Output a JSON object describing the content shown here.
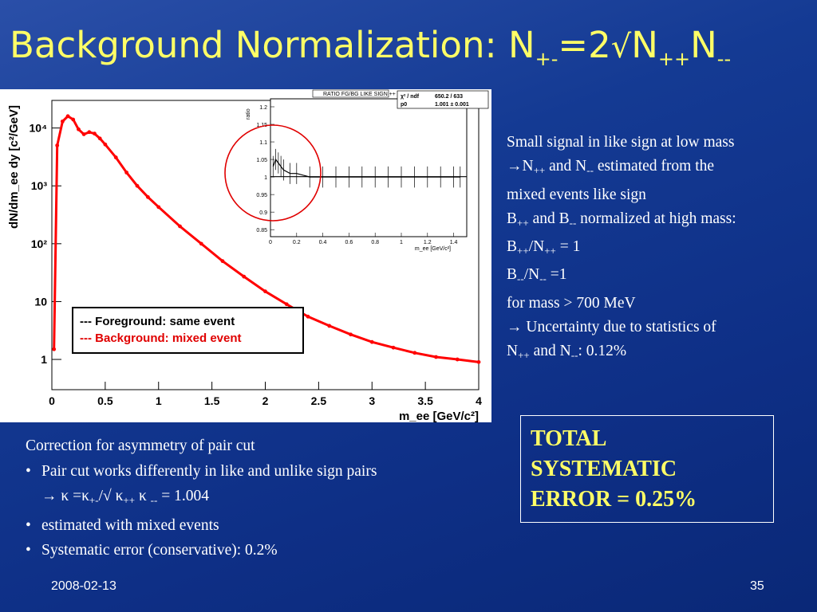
{
  "title": {
    "main": "Background Normalization: N",
    "sub1": "+-",
    "eq": "=2",
    "sqrt": "√",
    "n1": "N",
    "sub2": "++",
    "n2": "N",
    "sub3": "--"
  },
  "legend": {
    "fg": "--- Foreground: same event",
    "bg": "--- Background: mixed event"
  },
  "right_text": {
    "l1": "Small signal in like sign at low mass",
    "l2a": "N",
    "l2s1": "++",
    "l2b": " and N",
    "l2s2": "--",
    "l2c": " estimated from the",
    "l3": "mixed events like sign",
    "l4a": "B",
    "l4s1": "++",
    "l4b": " and B",
    "l4s2": "--",
    "l4c": " normalized at high mass:",
    "l5a": "B",
    "l5s1": "++",
    "l5b": "/N",
    "l5s2": "++",
    "l5c": " = 1",
    "l6a": "B",
    "l6s1": "--",
    "l6b": "/N",
    "l6s2": "--",
    "l6c": " =1",
    "l7": "for mass > 700 MeV",
    "l8": " Uncertainty due to statistics of",
    "l9a": "N",
    "l9s1": "++",
    "l9b": " and N",
    "l9s2": "--",
    "l9c": ": 0.12%"
  },
  "bottom_text": {
    "heading": "Correction for asymmetry of pair cut",
    "b1": "Pair cut works differently in like and unlike sign pairs",
    "k1": " κ =κ",
    "ks1": "+-",
    "k2": "/√ κ",
    "ks2": "++",
    "k3": " κ ",
    "ks3": "--",
    "k4": " = 1.004",
    "b2": "estimated with mixed events",
    "b3": "Systematic error (conservative): 0.2%"
  },
  "total_box": {
    "l1": "TOTAL",
    "l2": "SYSTEMATIC",
    "l3": "ERROR = 0.25%"
  },
  "footer": {
    "date": "2008-02-13",
    "page": "35"
  },
  "colors": {
    "title": "#ffff66",
    "background": "#143a93",
    "foreground_series": "#000000",
    "background_series": "#ff0000"
  },
  "chart_data": [
    {
      "type": "line",
      "title": "",
      "xlabel": "m_ee [GeV/c²]",
      "ylabel": "dN/dm_ee dy [c²/GeV]",
      "xlim": [
        0,
        4
      ],
      "ylim": [
        0.3,
        30000
      ],
      "yscale": "log",
      "x_ticks": [
        "0",
        "0.5",
        "1",
        "1.5",
        "2",
        "2.5",
        "3",
        "3.5",
        "4"
      ],
      "y_ticks": [
        "1",
        "10",
        "10²",
        "10³",
        "10⁴"
      ],
      "series": [
        {
          "name": "--- Foreground: same event",
          "color": "#000000",
          "x": [
            0.02,
            0.05,
            0.1,
            0.15,
            0.2,
            0.25,
            0.3,
            0.35,
            0.4,
            0.45,
            0.5,
            0.6,
            0.7,
            0.8,
            0.9,
            1.0,
            1.2,
            1.4,
            1.6,
            1.8,
            2.0,
            2.2,
            2.4,
            2.6,
            2.8,
            3.0,
            3.2,
            3.4,
            3.6,
            3.8,
            4.0
          ],
          "y": [
            1.5,
            5000,
            13000,
            16000,
            14000,
            9500,
            7800,
            8500,
            8000,
            6600,
            5200,
            3100,
            1700,
            1000,
            640,
            430,
            200,
            100,
            50,
            27,
            15,
            9,
            5.5,
            3.8,
            2.7,
            2.0,
            1.6,
            1.3,
            1.1,
            1.0,
            0.9
          ]
        },
        {
          "name": "--- Background: mixed event",
          "color": "#ff0000",
          "x": [
            0.02,
            0.05,
            0.1,
            0.15,
            0.2,
            0.25,
            0.3,
            0.35,
            0.4,
            0.45,
            0.5,
            0.6,
            0.7,
            0.8,
            0.9,
            1.0,
            1.2,
            1.4,
            1.6,
            1.8,
            2.0,
            2.2,
            2.4,
            2.6,
            2.8,
            3.0,
            3.2,
            3.4,
            3.6,
            3.8,
            4.0
          ],
          "y": [
            1.5,
            5000,
            13000,
            16000,
            14000,
            9500,
            7800,
            8500,
            8000,
            6600,
            5200,
            3100,
            1700,
            1000,
            640,
            430,
            200,
            100,
            50,
            27,
            15,
            9,
            5.5,
            3.8,
            2.7,
            2.0,
            1.6,
            1.3,
            1.1,
            1.0,
            0.9
          ]
        }
      ]
    },
    {
      "type": "line",
      "title": "RATIO FG/BG LIKE SIGN ++",
      "xlabel": "m_ee [GeV/c²]",
      "ylabel": "ratio",
      "xlim": [
        0,
        1.5
      ],
      "ylim": [
        0.83,
        1.2
      ],
      "x_ticks": [
        "0",
        "0.2",
        "0.4",
        "0.6",
        "0.8",
        "1",
        "1.2",
        "1.4"
      ],
      "y_ticks": [
        "0.85",
        "0.9",
        "0.95",
        "1",
        "1.05",
        "1.1",
        "1.15",
        "1.2"
      ],
      "fit_box": {
        "r1_label": "χ² / ndf",
        "r1_value": "650.2 / 633",
        "r2_label": "p0",
        "r2_value": "1.001 ± 0.001"
      },
      "series": [
        {
          "name": "",
          "color": "#000000",
          "x": [
            0.02,
            0.04,
            0.06,
            0.08,
            0.1,
            0.15,
            0.2,
            0.3,
            0.4,
            0.5,
            0.6,
            0.7,
            0.8,
            0.9,
            1.0,
            1.1,
            1.2,
            1.3,
            1.4,
            1.45
          ],
          "y": [
            1.03,
            1.05,
            1.04,
            1.03,
            1.02,
            1.01,
            1.01,
            1.0,
            1.0,
            1.0,
            1.0,
            1.0,
            1.0,
            1.0,
            1.0,
            1.0,
            1.0,
            1.0,
            1.0,
            1.0
          ]
        }
      ],
      "fit_value": 1.001
    }
  ]
}
